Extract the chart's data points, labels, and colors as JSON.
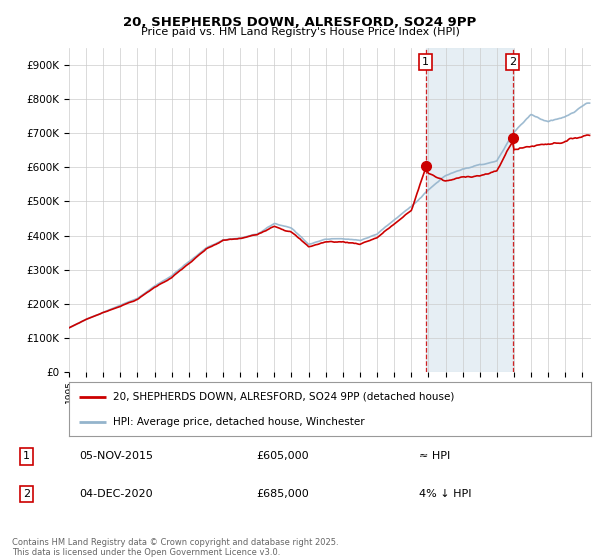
{
  "title": "20, SHEPHERDS DOWN, ALRESFORD, SO24 9PP",
  "subtitle": "Price paid vs. HM Land Registry's House Price Index (HPI)",
  "ylim": [
    0,
    950000
  ],
  "yticks": [
    0,
    100000,
    200000,
    300000,
    400000,
    500000,
    600000,
    700000,
    800000,
    900000
  ],
  "line1_color": "#cc0000",
  "line2_color": "#94b4cc",
  "line1_label": "20, SHEPHERDS DOWN, ALRESFORD, SO24 9PP (detached house)",
  "line2_label": "HPI: Average price, detached house, Winchester",
  "vline1_x": 2015.84,
  "vline2_x": 2020.92,
  "vline_color": "#cc0000",
  "shade_color": "#dce8f0",
  "sale1_date": "05-NOV-2015",
  "sale1_price": "£605,000",
  "sale1_vs_hpi": "≈ HPI",
  "sale1_y": 605000,
  "sale2_date": "04-DEC-2020",
  "sale2_price": "£685,000",
  "sale2_vs_hpi": "4% ↓ HPI",
  "sale2_y": 685000,
  "footer": "Contains HM Land Registry data © Crown copyright and database right 2025.\nThis data is licensed under the Open Government Licence v3.0.",
  "background_color": "#ffffff",
  "xlim_left": 1995.0,
  "xlim_right": 2025.5
}
